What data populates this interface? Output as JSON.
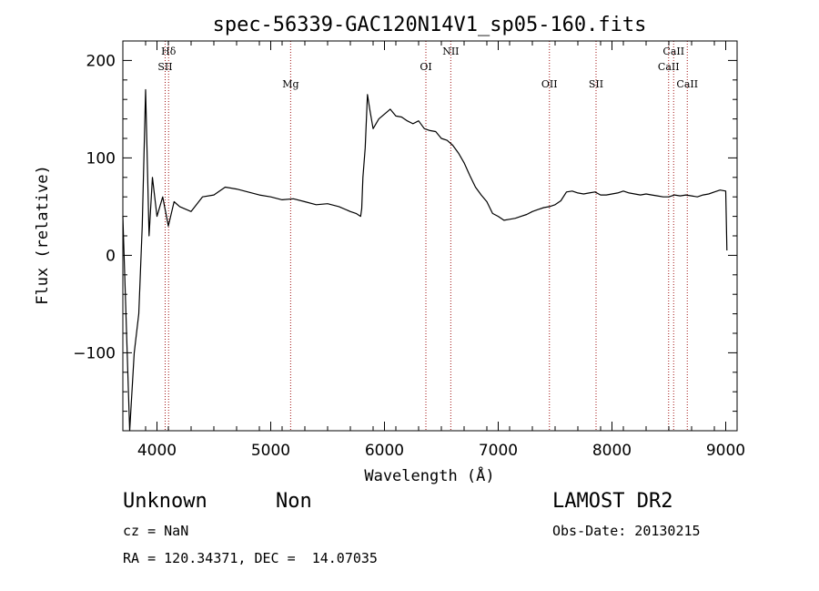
{
  "chart_data": {
    "type": "line",
    "title": "spec-56339-GAC120N14V1_sp05-160.fits",
    "xlabel": "Wavelength (Å)",
    "ylabel": "Flux (relative)",
    "xlim": [
      3700,
      9100
    ],
    "ylim": [
      -180,
      220
    ],
    "xticks": [
      4000,
      5000,
      6000,
      7000,
      8000,
      9000
    ],
    "yticks": [
      -100,
      0,
      100,
      200
    ],
    "grid": false,
    "series": [
      {
        "x": [
          3700,
          3760,
          3800,
          3840,
          3870,
          3900,
          3930,
          3960,
          4000,
          4050,
          4100,
          4150,
          4200,
          4300,
          4400,
          4500,
          4600,
          4700,
          4800,
          4900,
          5000,
          5100,
          5200,
          5300,
          5400,
          5500,
          5600,
          5700,
          5750,
          5790,
          5800,
          5810,
          5830,
          5850,
          5870,
          5900,
          5950,
          6000,
          6050,
          6100,
          6150,
          6200,
          6250,
          6300,
          6350,
          6400,
          6450,
          6500,
          6550,
          6600,
          6650,
          6700,
          6750,
          6800,
          6850,
          6900,
          6950,
          7000,
          7050,
          7100,
          7150,
          7200,
          7250,
          7300,
          7350,
          7400,
          7450,
          7500,
          7550,
          7600,
          7650,
          7700,
          7750,
          7800,
          7850,
          7900,
          7950,
          8000,
          8050,
          8100,
          8150,
          8200,
          8250,
          8300,
          8350,
          8400,
          8450,
          8500,
          8550,
          8600,
          8650,
          8700,
          8750,
          8800,
          8850,
          8900,
          8950,
          9000,
          9010
        ],
        "y": [
          40,
          -180,
          -100,
          -60,
          30,
          170,
          20,
          80,
          40,
          60,
          30,
          55,
          50,
          45,
          60,
          62,
          70,
          68,
          65,
          62,
          60,
          57,
          58,
          55,
          52,
          53,
          50,
          45,
          43,
          40,
          48,
          80,
          110,
          165,
          150,
          130,
          140,
          145,
          150,
          143,
          142,
          138,
          135,
          138,
          130,
          128,
          127,
          120,
          118,
          113,
          105,
          95,
          82,
          70,
          62,
          55,
          43,
          40,
          36,
          37,
          38,
          40,
          42,
          45,
          47,
          49,
          50,
          52,
          56,
          65,
          66,
          64,
          63,
          64,
          65,
          62,
          62,
          63,
          64,
          66,
          64,
          63,
          62,
          63,
          62,
          61,
          60,
          60,
          62,
          61,
          62,
          61,
          60,
          62,
          63,
          65,
          67,
          66,
          5
        ]
      }
    ],
    "lines": [
      {
        "label": "Hδ",
        "x": 4102,
        "row": 0
      },
      {
        "label": "SII",
        "x": 4072,
        "row": 1
      },
      {
        "label": "Mg",
        "x": 5175,
        "row": 2
      },
      {
        "label": "OI",
        "x": 6364,
        "row": 1
      },
      {
        "label": "NII",
        "x": 6583,
        "row": 0
      },
      {
        "label": "OII",
        "x": 7450,
        "row": 2
      },
      {
        "label": "SII",
        "x": 7860,
        "row": 2
      },
      {
        "label": "CaII",
        "x": 8542,
        "row": 0
      },
      {
        "label": "CaII",
        "x": 8498,
        "row": 1
      },
      {
        "label": "CaII",
        "x": 8662,
        "row": 2
      }
    ]
  },
  "info": {
    "object_class": "Unknown",
    "subclass": "Non",
    "survey": "LAMOST DR2",
    "cz": "cz = NaN",
    "obs_date": "Obs-Date: 20130215",
    "coords": "RA = 120.34371, DEC =  14.07035"
  },
  "colors": {
    "line_marker": "#a01010",
    "spectrum": "#000000"
  }
}
